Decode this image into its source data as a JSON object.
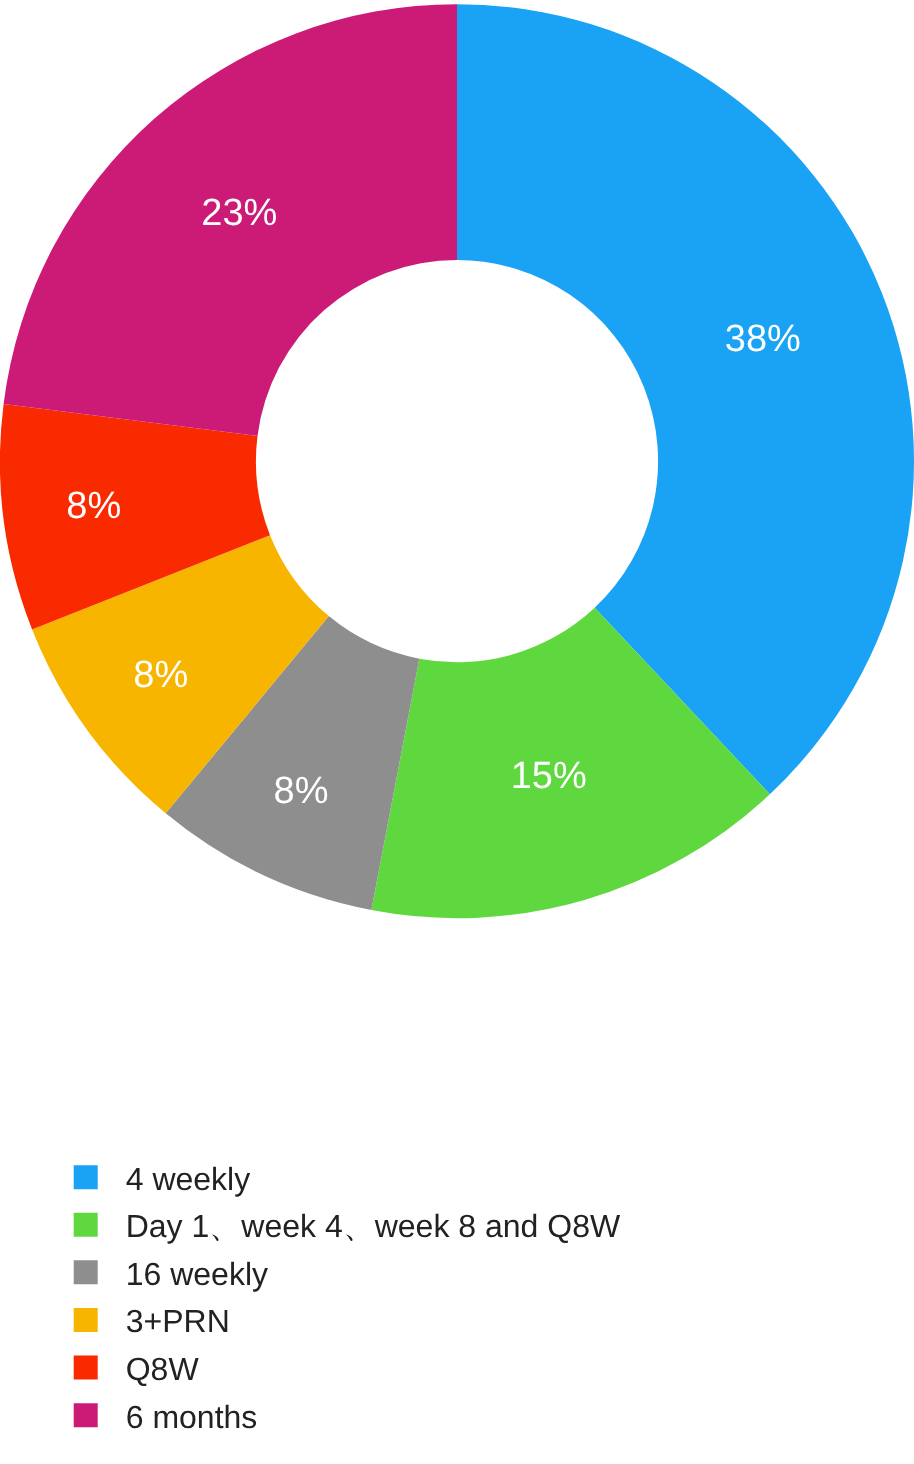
{
  "chart_data": {
    "type": "donut",
    "categories": [
      "4 weekly",
      "Day 1、week 4、week 8 and Q8W",
      "16 weekly",
      "3+PRN",
      "Q8W",
      "6 months"
    ],
    "values": [
      38,
      15,
      8,
      8,
      8,
      23
    ],
    "value_labels": [
      "38%",
      "15%",
      "8%",
      "8%",
      "8%",
      "23%"
    ],
    "colors": [
      "#1aa3f5",
      "#5fd83f",
      "#8e8e8e",
      "#f7b500",
      "#fa2a00",
      "#cc1a77"
    ],
    "legend": "bottom left"
  }
}
